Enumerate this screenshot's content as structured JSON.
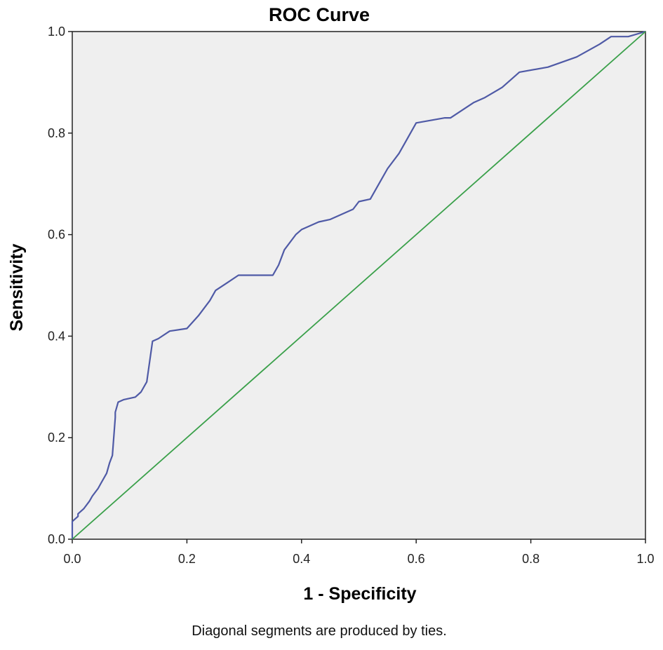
{
  "chart_data": {
    "type": "line",
    "title": "ROC Curve",
    "xlabel": "1 - Specificity",
    "ylabel": "Sensitivity",
    "xlim": [
      0.0,
      1.0
    ],
    "ylim": [
      0.0,
      1.0
    ],
    "x_ticks": [
      "0.0",
      "0.2",
      "0.4",
      "0.6",
      "0.8",
      "1.0"
    ],
    "y_ticks": [
      "0.0",
      "0.2",
      "0.4",
      "0.6",
      "0.8",
      "1.0"
    ],
    "grid": false,
    "legend": "none",
    "plot_background": "#efefef",
    "footnote": "Diagonal segments are produced by ties.",
    "series": [
      {
        "color": "#4f5aa6",
        "x": [
          0.0,
          0.0,
          0.01,
          0.01,
          0.02,
          0.03,
          0.035,
          0.045,
          0.05,
          0.06,
          0.065,
          0.07,
          0.075,
          0.075,
          0.08,
          0.09,
          0.11,
          0.12,
          0.13,
          0.135,
          0.14,
          0.15,
          0.17,
          0.2,
          0.22,
          0.24,
          0.25,
          0.27,
          0.29,
          0.35,
          0.36,
          0.37,
          0.39,
          0.4,
          0.43,
          0.45,
          0.47,
          0.49,
          0.5,
          0.52,
          0.53,
          0.55,
          0.57,
          0.58,
          0.6,
          0.65,
          0.66,
          0.7,
          0.72,
          0.75,
          0.78,
          0.83,
          0.88,
          0.92,
          0.94,
          0.97,
          1.0
        ],
        "y": [
          0.0,
          0.035,
          0.045,
          0.05,
          0.06,
          0.075,
          0.085,
          0.1,
          0.11,
          0.13,
          0.15,
          0.165,
          0.24,
          0.25,
          0.27,
          0.275,
          0.28,
          0.29,
          0.31,
          0.35,
          0.39,
          0.395,
          0.41,
          0.415,
          0.44,
          0.47,
          0.49,
          0.505,
          0.52,
          0.52,
          0.54,
          0.57,
          0.6,
          0.61,
          0.625,
          0.63,
          0.64,
          0.65,
          0.665,
          0.67,
          0.69,
          0.73,
          0.76,
          0.78,
          0.82,
          0.83,
          0.83,
          0.86,
          0.87,
          0.89,
          0.92,
          0.93,
          0.95,
          0.975,
          0.99,
          0.99,
          1.0
        ]
      },
      {
        "color": "#3aa04a",
        "x": [
          0.0,
          1.0
        ],
        "y": [
          0.0,
          1.0
        ]
      }
    ]
  }
}
